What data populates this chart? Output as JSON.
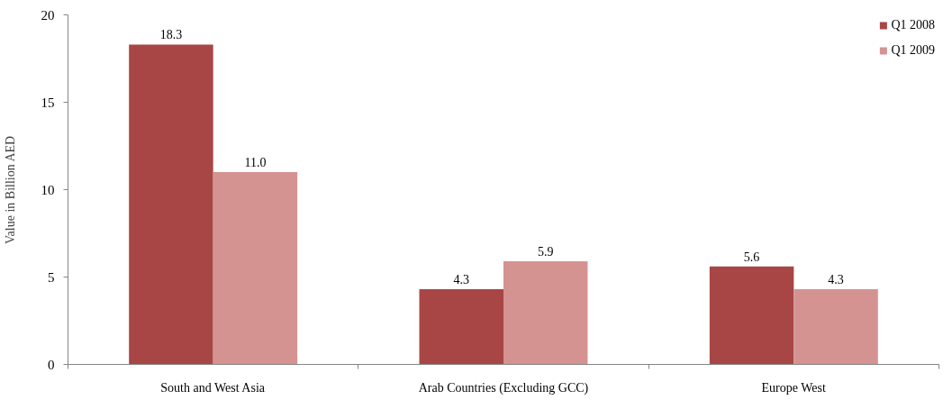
{
  "chart_data": {
    "type": "bar",
    "ylabel": "Value in Billion AED",
    "categories": [
      "South and West Asia",
      "Arab Countries (Excluding GCC)",
      "Europe West"
    ],
    "series": [
      {
        "name": "Q1 2008",
        "color": "#a84645",
        "values": [
          18.3,
          4.3,
          5.6
        ],
        "value_labels": [
          "18.3",
          "4.3",
          "5.6"
        ]
      },
      {
        "name": "Q1 2009",
        "color": "#d49391",
        "values": [
          11.0,
          5.9,
          4.3
        ],
        "value_labels": [
          "11.0",
          "5.9",
          "4.3"
        ]
      }
    ],
    "ylim": [
      0,
      20
    ],
    "yticks": [
      0,
      5,
      10,
      15,
      20
    ],
    "grid": false,
    "legend": "top right"
  }
}
